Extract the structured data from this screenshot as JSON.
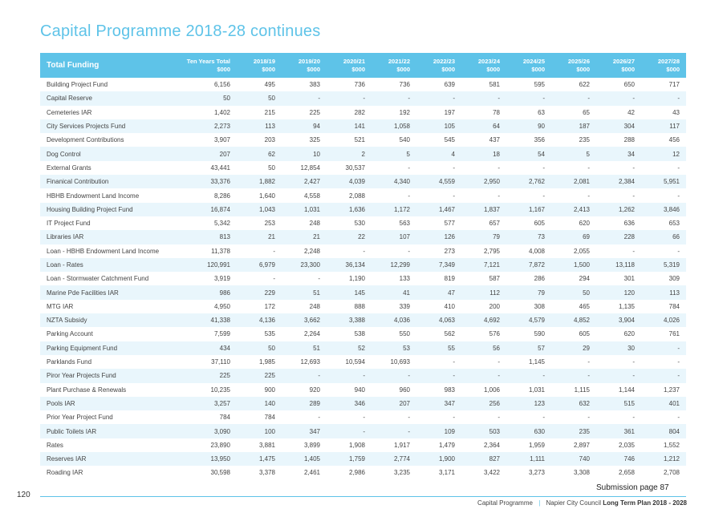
{
  "page_title": "Capital Programme 2018-28 continues",
  "table": {
    "header_title": "Total Funding",
    "columns": [
      [
        "Ten Years Total",
        "$000"
      ],
      [
        "2018/19",
        "$000"
      ],
      [
        "2019/20",
        "$000"
      ],
      [
        "2020/21",
        "$000"
      ],
      [
        "2021/22",
        "$000"
      ],
      [
        "2022/23",
        "$000"
      ],
      [
        "2023/24",
        "$000"
      ],
      [
        "2024/25",
        "$000"
      ],
      [
        "2025/26",
        "$000"
      ],
      [
        "2026/27",
        "$000"
      ],
      [
        "2027/28",
        "$000"
      ]
    ],
    "rows": [
      [
        "Building Project Fund",
        "6,156",
        "495",
        "383",
        "736",
        "736",
        "639",
        "581",
        "595",
        "622",
        "650",
        "717"
      ],
      [
        "Capital Reserve",
        "50",
        "50",
        "-",
        "-",
        "-",
        "-",
        "-",
        "-",
        "-",
        "-",
        "-"
      ],
      [
        "Cemeteries IAR",
        "1,402",
        "215",
        "225",
        "282",
        "192",
        "197",
        "78",
        "63",
        "65",
        "42",
        "43"
      ],
      [
        "City Services Projects Fund",
        "2,273",
        "113",
        "94",
        "141",
        "1,058",
        "105",
        "64",
        "90",
        "187",
        "304",
        "117"
      ],
      [
        "Development Contributions",
        "3,907",
        "203",
        "325",
        "521",
        "540",
        "545",
        "437",
        "356",
        "235",
        "288",
        "456"
      ],
      [
        "Dog Control",
        "207",
        "62",
        "10",
        "2",
        "5",
        "4",
        "18",
        "54",
        "5",
        "34",
        "12"
      ],
      [
        "External Grants",
        "43,441",
        "50",
        "12,854",
        "30,537",
        "-",
        "-",
        "-",
        "-",
        "-",
        "-",
        "-"
      ],
      [
        "Finanical Contribution",
        "33,376",
        "1,882",
        "2,427",
        "4,039",
        "4,340",
        "4,559",
        "2,950",
        "2,762",
        "2,081",
        "2,384",
        "5,951"
      ],
      [
        "HBHB Endowment Land Income",
        "8,286",
        "1,640",
        "4,558",
        "2,088",
        "-",
        "-",
        "-",
        "-",
        "-",
        "-",
        "-"
      ],
      [
        "Housing Building Project Fund",
        "16,874",
        "1,043",
        "1,031",
        "1,636",
        "1,172",
        "1,467",
        "1,837",
        "1,167",
        "2,413",
        "1,262",
        "3,846"
      ],
      [
        "IT Project Fund",
        "5,342",
        "253",
        "248",
        "530",
        "563",
        "577",
        "657",
        "605",
        "620",
        "636",
        "653"
      ],
      [
        "Libraries IAR",
        "813",
        "21",
        "21",
        "22",
        "107",
        "126",
        "79",
        "73",
        "69",
        "228",
        "66"
      ],
      [
        "Loan - HBHB Endowment Land Income",
        "11,378",
        "-",
        "2,248",
        "-",
        "-",
        "273",
        "2,795",
        "4,008",
        "2,055",
        "-",
        "-"
      ],
      [
        "Loan - Rates",
        "120,991",
        "6,979",
        "23,300",
        "36,134",
        "12,299",
        "7,349",
        "7,121",
        "7,872",
        "1,500",
        "13,118",
        "5,319"
      ],
      [
        "Loan - Stormwater Catchment Fund",
        "3,919",
        "-",
        "-",
        "1,190",
        "133",
        "819",
        "587",
        "286",
        "294",
        "301",
        "309"
      ],
      [
        "Marine Pde Facilities IAR",
        "986",
        "229",
        "51",
        "145",
        "41",
        "47",
        "112",
        "79",
        "50",
        "120",
        "113"
      ],
      [
        "MTG IAR",
        "4,950",
        "172",
        "248",
        "888",
        "339",
        "410",
        "200",
        "308",
        "465",
        "1,135",
        "784"
      ],
      [
        "NZTA Subsidy",
        "41,338",
        "4,136",
        "3,662",
        "3,388",
        "4,036",
        "4,063",
        "4,692",
        "4,579",
        "4,852",
        "3,904",
        "4,026"
      ],
      [
        "Parking Account",
        "7,599",
        "535",
        "2,264",
        "538",
        "550",
        "562",
        "576",
        "590",
        "605",
        "620",
        "761"
      ],
      [
        "Parking Equipment Fund",
        "434",
        "50",
        "51",
        "52",
        "53",
        "55",
        "56",
        "57",
        "29",
        "30",
        "-"
      ],
      [
        "Parklands Fund",
        "37,110",
        "1,985",
        "12,693",
        "10,594",
        "10,693",
        "-",
        "-",
        "1,145",
        "-",
        "-",
        "-"
      ],
      [
        "Piror Year Projects Fund",
        "225",
        "225",
        "-",
        "-",
        "-",
        "-",
        "-",
        "-",
        "-",
        "-",
        "-"
      ],
      [
        "Plant Purchase & Renewals",
        "10,235",
        "900",
        "920",
        "940",
        "960",
        "983",
        "1,006",
        "1,031",
        "1,115",
        "1,144",
        "1,237"
      ],
      [
        "Pools IAR",
        "3,257",
        "140",
        "289",
        "346",
        "207",
        "347",
        "256",
        "123",
        "632",
        "515",
        "401"
      ],
      [
        "Prior Year Project Fund",
        "784",
        "784",
        "-",
        "-",
        "-",
        "-",
        "-",
        "-",
        "-",
        "-",
        "-"
      ],
      [
        "Public Toilets IAR",
        "3,090",
        "100",
        "347",
        "-",
        "-",
        "109",
        "503",
        "630",
        "235",
        "361",
        "804"
      ],
      [
        "Rates",
        "23,890",
        "3,881",
        "3,899",
        "1,908",
        "1,917",
        "1,479",
        "2,364",
        "1,959",
        "2,897",
        "2,035",
        "1,552"
      ],
      [
        "Reserves IAR",
        "13,950",
        "1,475",
        "1,405",
        "1,759",
        "2,774",
        "1,900",
        "827",
        "1,111",
        "740",
        "746",
        "1,212"
      ],
      [
        "Roading IAR",
        "30,598",
        "3,378",
        "2,461",
        "2,986",
        "3,235",
        "3,171",
        "3,422",
        "3,273",
        "3,308",
        "2,658",
        "2,708"
      ]
    ]
  },
  "submission_page": "Submission page 87",
  "page_number": "120",
  "footer": {
    "section": "Capital Programme",
    "separator": "|",
    "org": "Napier City Council",
    "doc": "Long Term Plan 2018 - 2028"
  },
  "colors": {
    "accent": "#5ec3e8",
    "row_alt": "#e9f6fc"
  }
}
